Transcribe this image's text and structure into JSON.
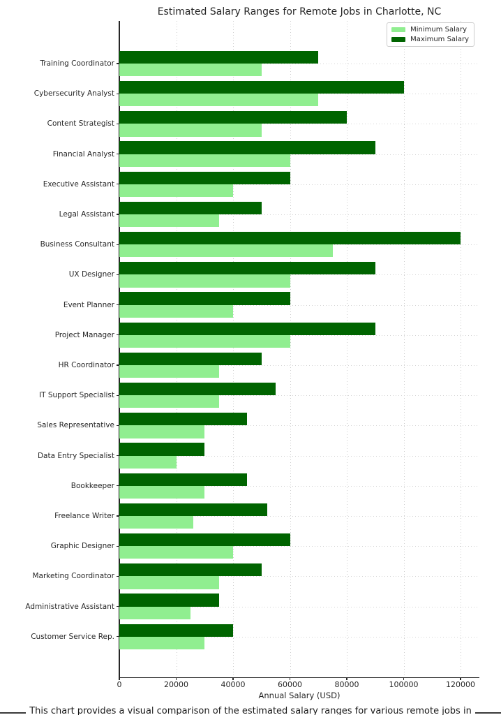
{
  "figure": {
    "caption": "This chart provides a visual comparison of the estimated salary ranges for various remote jobs in"
  },
  "chart_data": {
    "type": "bar",
    "orientation": "horizontal",
    "title": "Estimated Salary Ranges for Remote Jobs in Charlotte, NC",
    "xlabel": "Annual Salary (USD)",
    "ylabel": "",
    "categories": [
      "Training Coordinator",
      "Cybersecurity Analyst",
      "Content Strategist",
      "Financial Analyst",
      "Executive Assistant",
      "Legal Assistant",
      "Business Consultant",
      "UX Designer",
      "Event Planner",
      "Project Manager",
      "HR Coordinator",
      "IT Support Specialist",
      "Sales Representative",
      "Data Entry Specialist",
      "Bookkeeper",
      "Freelance Writer",
      "Graphic Designer",
      "Marketing Coordinator",
      "Administrative Assistant",
      "Customer Service Rep."
    ],
    "series": [
      {
        "name": "Minimum Salary",
        "color": "#90EE90",
        "values": [
          50000,
          70000,
          50000,
          60000,
          40000,
          35000,
          75000,
          60000,
          40000,
          60000,
          35000,
          35000,
          30000,
          20000,
          30000,
          26000,
          40000,
          35000,
          25000,
          30000
        ]
      },
      {
        "name": "Maximum Salary",
        "color": "#006400",
        "values": [
          70000,
          100000,
          80000,
          90000,
          60000,
          50000,
          120000,
          90000,
          60000,
          90000,
          50000,
          55000,
          45000,
          30000,
          45000,
          52000,
          60000,
          50000,
          35000,
          40000
        ]
      }
    ],
    "xticks": [
      0,
      20000,
      40000,
      60000,
      80000,
      100000,
      120000
    ],
    "xlim": [
      0,
      126000
    ],
    "grid": "dotted, both axes",
    "legend_position": "upper right"
  }
}
